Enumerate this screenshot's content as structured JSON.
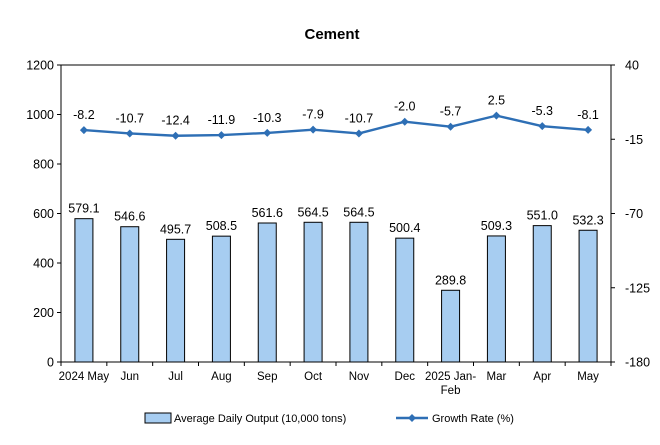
{
  "chart_data": {
    "type": "bar",
    "title": "Cement",
    "categories": [
      "2024 May",
      "Jun",
      "Jul",
      "Aug",
      "Sep",
      "Oct",
      "Nov",
      "Dec",
      "2025 Jan-Feb",
      "Mar",
      "Apr",
      "May"
    ],
    "category_lines": [
      [
        "2024 May"
      ],
      [
        "Jun"
      ],
      [
        "Jul"
      ],
      [
        "Aug"
      ],
      [
        "Sep"
      ],
      [
        "Oct"
      ],
      [
        "Nov"
      ],
      [
        "Dec"
      ],
      [
        "2025 Jan-",
        "Feb"
      ],
      [
        "Mar"
      ],
      [
        "Apr"
      ],
      [
        "May"
      ]
    ],
    "series": [
      {
        "name": "Average Daily Output (10,000 tons)",
        "type": "bar",
        "axis": "left",
        "values": [
          579.1,
          546.6,
          495.7,
          508.5,
          561.6,
          564.5,
          564.5,
          500.4,
          289.8,
          509.3,
          551.0,
          532.3
        ],
        "labels": [
          "579.1",
          "546.6",
          "495.7",
          "508.5",
          "561.6",
          "564.5",
          "564.5",
          "500.4",
          "289.8",
          "509.3",
          "551.0",
          "532.3"
        ]
      },
      {
        "name": "Growth Rate (%)",
        "type": "line",
        "axis": "right",
        "values": [
          -8.2,
          -10.7,
          -12.4,
          -11.9,
          -10.3,
          -7.9,
          -10.7,
          -2.0,
          -5.7,
          2.5,
          -5.3,
          -8.1
        ],
        "labels": [
          "-8.2",
          "-10.7",
          "-12.4",
          "-11.9",
          "-10.3",
          "-7.9",
          "-10.7",
          "-2.0",
          "-5.7",
          "2.5",
          "-5.3",
          "-8.1"
        ]
      }
    ],
    "y_left": {
      "min": 0,
      "max": 1200,
      "ticks": [
        "0",
        "200",
        "400",
        "600",
        "800",
        "1000",
        "1200"
      ],
      "tick_values": [
        0,
        200,
        400,
        600,
        800,
        1000,
        1200
      ]
    },
    "y_right": {
      "min": -180,
      "max": 40,
      "ticks": [
        "-180",
        "-125",
        "-70",
        "-15",
        "40"
      ],
      "tick_values": [
        -180,
        -125,
        -70,
        -15,
        40
      ]
    },
    "grid": false,
    "legend_position": "bottom",
    "colors": {
      "bar_fill": "#a7cdf1",
      "bar_stroke": "#000000",
      "line": "#2e6fb5",
      "axis": "#000000"
    }
  }
}
